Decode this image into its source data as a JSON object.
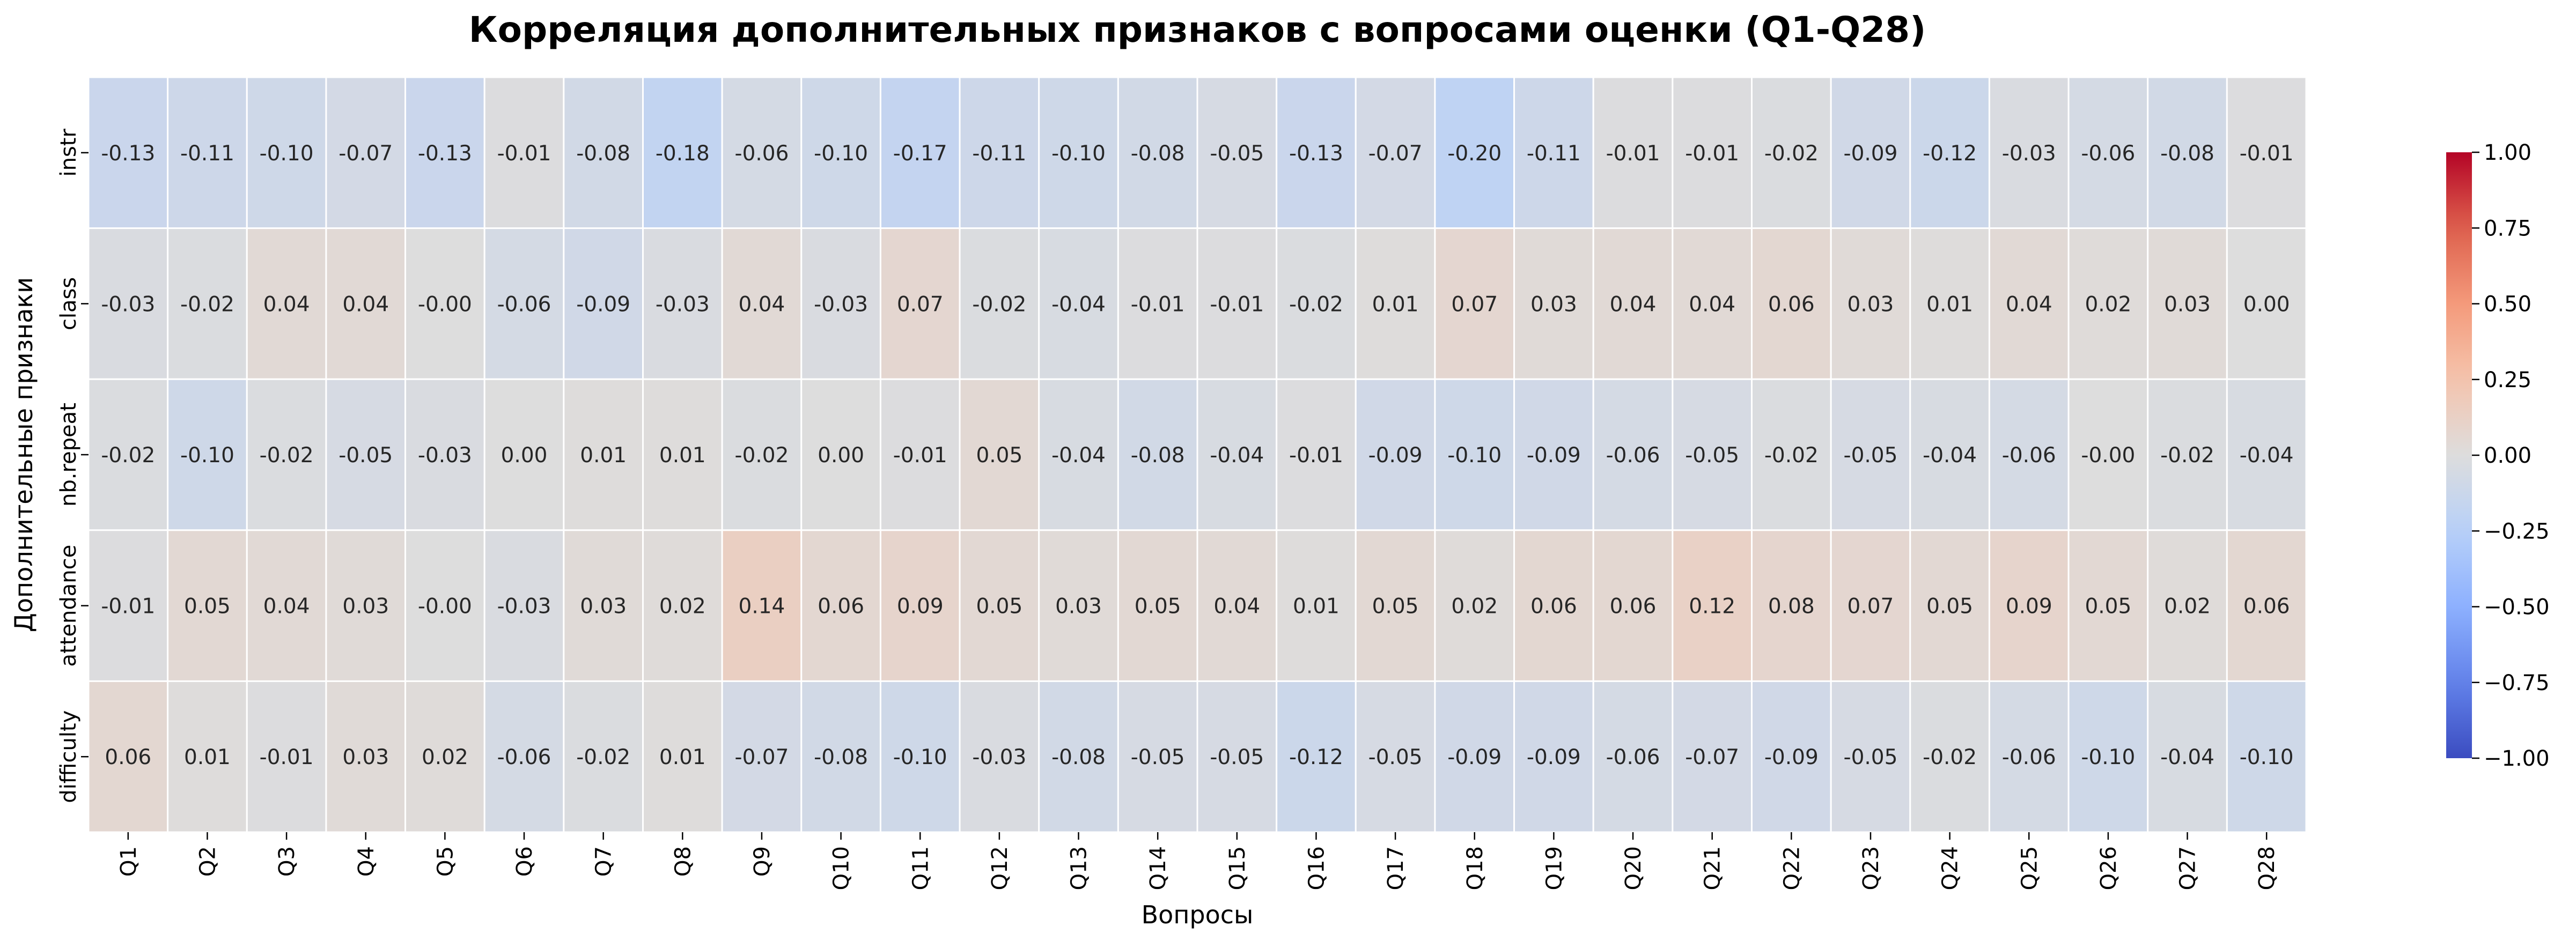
{
  "chart_data": {
    "type": "heatmap",
    "title": "Корреляция дополнительных признаков с вопросами оценки (Q1-Q28)",
    "xlabel": "Вопросы",
    "ylabel": "Дополнительные признаки",
    "x_categories": [
      "Q1",
      "Q2",
      "Q3",
      "Q4",
      "Q5",
      "Q6",
      "Q7",
      "Q8",
      "Q9",
      "Q10",
      "Q11",
      "Q12",
      "Q13",
      "Q14",
      "Q15",
      "Q16",
      "Q17",
      "Q18",
      "Q19",
      "Q20",
      "Q21",
      "Q22",
      "Q23",
      "Q24",
      "Q25",
      "Q26",
      "Q27",
      "Q28"
    ],
    "y_categories": [
      "instr",
      "class",
      "nb.repeat",
      "attendance",
      "difficulty"
    ],
    "values": [
      [
        -0.13,
        -0.11,
        -0.1,
        -0.07,
        -0.13,
        -0.01,
        -0.08,
        -0.18,
        -0.06,
        -0.1,
        -0.17,
        -0.11,
        -0.1,
        -0.08,
        -0.05,
        -0.13,
        -0.07,
        -0.2,
        -0.11,
        -0.01,
        -0.01,
        -0.02,
        -0.09,
        -0.12,
        -0.03,
        -0.06,
        -0.08,
        -0.01
      ],
      [
        -0.03,
        -0.02,
        0.04,
        0.04,
        -0.0,
        -0.06,
        -0.09,
        -0.03,
        0.04,
        -0.03,
        0.07,
        -0.02,
        -0.04,
        -0.01,
        -0.01,
        -0.02,
        0.01,
        0.07,
        0.03,
        0.04,
        0.04,
        0.06,
        0.03,
        0.01,
        0.04,
        0.02,
        0.03,
        0.0
      ],
      [
        -0.02,
        -0.1,
        -0.02,
        -0.05,
        -0.03,
        0.0,
        0.01,
        0.01,
        -0.02,
        0.0,
        -0.01,
        0.05,
        -0.04,
        -0.08,
        -0.04,
        -0.01,
        -0.09,
        -0.1,
        -0.09,
        -0.06,
        -0.05,
        -0.02,
        -0.05,
        -0.04,
        -0.06,
        -0.0,
        -0.02,
        -0.04
      ],
      [
        -0.01,
        0.05,
        0.04,
        0.03,
        -0.0,
        -0.03,
        0.03,
        0.02,
        0.14,
        0.06,
        0.09,
        0.05,
        0.03,
        0.05,
        0.04,
        0.01,
        0.05,
        0.02,
        0.06,
        0.06,
        0.12,
        0.08,
        0.07,
        0.05,
        0.09,
        0.05,
        0.02,
        0.06
      ],
      [
        0.06,
        0.01,
        -0.01,
        0.03,
        0.02,
        -0.06,
        -0.02,
        0.01,
        -0.07,
        -0.08,
        -0.1,
        -0.03,
        -0.08,
        -0.05,
        -0.05,
        -0.12,
        -0.05,
        -0.09,
        -0.09,
        -0.06,
        -0.07,
        -0.09,
        -0.05,
        -0.02,
        -0.06,
        -0.1,
        -0.04,
        -0.1
      ]
    ],
    "colormap": "coolwarm",
    "vmin": -1.0,
    "vmax": 1.0,
    "colorbar_ticks": [
      "1.00",
      "0.75",
      "0.50",
      "0.25",
      "0.00",
      "−0.25",
      "−0.50",
      "−0.75",
      "−1.00"
    ],
    "colorbar_tick_values": [
      1.0,
      0.75,
      0.5,
      0.25,
      0.0,
      -0.25,
      -0.5,
      -0.75,
      -1.0
    ],
    "annotations": "values shown in each cell with two decimals",
    "grid": false
  }
}
